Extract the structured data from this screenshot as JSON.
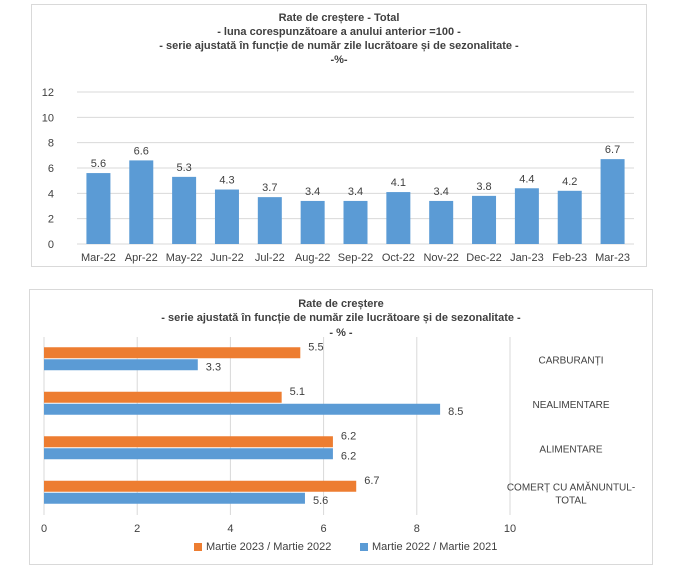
{
  "colors": {
    "blue": "#5b9bd5",
    "orange": "#ed7d31",
    "grid": "#d9d9d9",
    "text": "#404040"
  },
  "chart_data": [
    {
      "type": "bar",
      "title": "Rate de creștere - Total",
      "subtitle": [
        "- luna corespunzătoare a anului anterior =100 -",
        "- serie ajustată în funcție de număr zile lucrătoare și de sezonalitate -",
        "-%-"
      ],
      "categories": [
        "Mar-22",
        "Apr-22",
        "May-22",
        "Jun-22",
        "Jul-22",
        "Aug-22",
        "Sep-22",
        "Oct-22",
        "Nov-22",
        "Dec-22",
        "Jan-23",
        "Feb-23",
        "Mar-23"
      ],
      "values": [
        5.6,
        6.6,
        5.3,
        4.3,
        3.7,
        3.4,
        3.4,
        4.1,
        3.4,
        3.8,
        4.4,
        4.2,
        6.7
      ],
      "value_labels": [
        "5.6",
        "6.6",
        "5.3",
        "4.3",
        "3.7",
        "3.4",
        "3.4",
        "4.1",
        "3.4",
        "3.8",
        "4.4",
        "4.2",
        "6.7"
      ],
      "ylim": [
        0,
        12
      ],
      "yticks": [
        "0",
        "2",
        "4",
        "6",
        "8",
        "10",
        "12"
      ],
      "grid": true
    },
    {
      "type": "bar",
      "orientation": "horizontal",
      "title": "Rate de creștere",
      "subtitle": [
        "- serie ajustată în funcție de număr zile lucrătoare și de sezonalitate -",
        "- % -"
      ],
      "categories": [
        "CARBURANȚI",
        "NEALIMENTARE",
        "ALIMENTARE",
        "COMERȚ CU AMĂNUNTUL-TOTAL"
      ],
      "category_lines": [
        [
          "CARBURANȚI"
        ],
        [
          "NEALIMENTARE"
        ],
        [
          "ALIMENTARE"
        ],
        [
          "COMERȚ CU AMĂNUNTUL-",
          "TOTAL"
        ]
      ],
      "series": [
        {
          "name": "Martie 2023 / Martie 2022",
          "values": [
            5.5,
            5.1,
            6.2,
            6.7
          ],
          "labels": [
            "5.5",
            "5.1",
            "6.2",
            "6.7"
          ]
        },
        {
          "name": "Martie 2022 / Martie 2021",
          "values": [
            3.3,
            8.5,
            6.2,
            5.6
          ],
          "labels": [
            "3.3",
            "8.5",
            "6.2",
            "5.6"
          ]
        }
      ],
      "xlim": [
        0,
        10
      ],
      "xticks": [
        "0",
        "2",
        "4",
        "6",
        "8",
        "10"
      ],
      "grid": true,
      "legend": "bottom"
    }
  ]
}
